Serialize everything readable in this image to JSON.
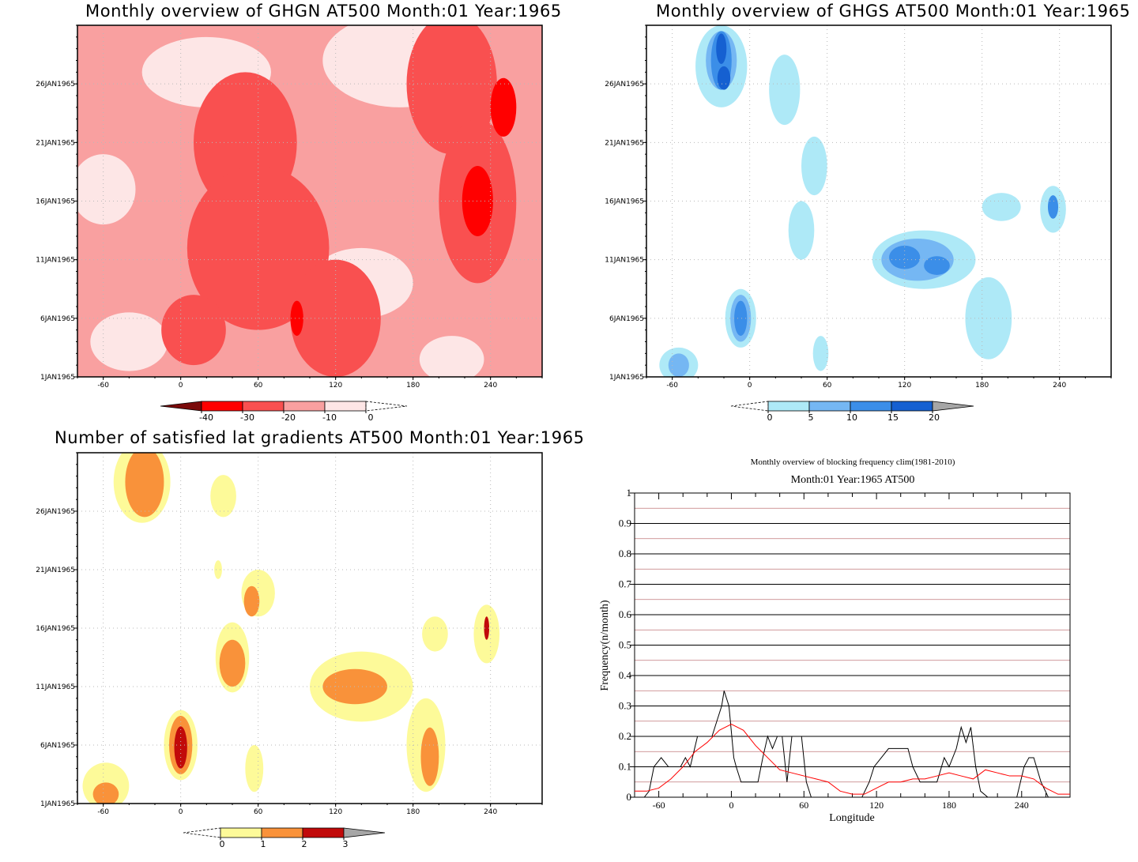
{
  "colors": {
    "red": [
      "#7a0a0a",
      "#ff0000",
      "#f95050",
      "#f9a0a0",
      "#fde6e6"
    ],
    "blue": [
      "#aee9f7",
      "#75b7f3",
      "#3b8ee8",
      "#1560d1",
      "#a6a6a6"
    ],
    "yellow": [
      "#fdfa99",
      "#f9923a",
      "#c10a0a",
      "#a6a6a6"
    ],
    "line_black": "#000000",
    "line_red": "#ff0000",
    "grid_pink": "#c0787a"
  },
  "chart_data": [
    {
      "type": "heatmap",
      "title": "Monthly overview of GHGN AT500 Month:01 Year:1965",
      "y_ticks": [
        "1JAN1965",
        "6JAN1965",
        "11JAN1965",
        "16JAN1965",
        "21JAN1965",
        "26JAN1965"
      ],
      "x_ticks": [
        "-60",
        "0",
        "60",
        "120",
        "180",
        "240"
      ],
      "xlim": [
        -80,
        280
      ],
      "ylim": [
        1,
        31
      ],
      "colorbar": {
        "labels": [
          "-40",
          "-30",
          "-20",
          "-10",
          "0"
        ],
        "ends": [
          "triangle-left",
          "dashed-right"
        ]
      },
      "blobs": [
        {
          "level": 1,
          "x": 250,
          "y": 24,
          "rx": 10,
          "ry": 2.5
        },
        {
          "level": 1,
          "x": 230,
          "y": 16,
          "rx": 12,
          "ry": 3
        },
        {
          "level": 1,
          "x": 90,
          "y": 6,
          "rx": 5,
          "ry": 1.5
        },
        {
          "level": 2,
          "x": 210,
          "y": 26,
          "rx": 35,
          "ry": 6
        },
        {
          "level": 2,
          "x": 50,
          "y": 21,
          "rx": 40,
          "ry": 6
        },
        {
          "level": 2,
          "x": 230,
          "y": 16,
          "rx": 30,
          "ry": 7
        },
        {
          "level": 2,
          "x": 60,
          "y": 12,
          "rx": 55,
          "ry": 7
        },
        {
          "level": 2,
          "x": 120,
          "y": 6,
          "rx": 35,
          "ry": 5
        },
        {
          "level": 2,
          "x": 10,
          "y": 5,
          "rx": 25,
          "ry": 3
        },
        {
          "level": 3,
          "x": 80,
          "y": 30,
          "rx": 70,
          "ry": 3
        },
        {
          "level": 3,
          "x": 0,
          "y": 23,
          "rx": 60,
          "ry": 3
        },
        {
          "level": 4,
          "x": 20,
          "y": 27,
          "rx": 50,
          "ry": 3
        },
        {
          "level": 4,
          "x": 170,
          "y": 28,
          "rx": 60,
          "ry": 4
        },
        {
          "level": 4,
          "x": -60,
          "y": 17,
          "rx": 25,
          "ry": 3
        },
        {
          "level": 4,
          "x": 140,
          "y": 9,
          "rx": 40,
          "ry": 3
        },
        {
          "level": 4,
          "x": -40,
          "y": 4,
          "rx": 30,
          "ry": 2.5
        },
        {
          "level": 4,
          "x": 210,
          "y": 2.5,
          "rx": 25,
          "ry": 2
        }
      ]
    },
    {
      "type": "heatmap",
      "title": "Monthly overview of GHGS AT500 Month:01 Year:1965",
      "y_ticks": [
        "1JAN1965",
        "6JAN1965",
        "11JAN1965",
        "16JAN1965",
        "21JAN1965",
        "26JAN1965"
      ],
      "x_ticks": [
        "-60",
        "0",
        "60",
        "120",
        "180",
        "240"
      ],
      "xlim": [
        -80,
        280
      ],
      "ylim": [
        1,
        31
      ],
      "colorbar": {
        "labels": [
          "0",
          "5",
          "10",
          "15",
          "20"
        ],
        "ends": [
          "dashed-left",
          "triangle-right"
        ]
      },
      "blobs": [
        {
          "level": 0,
          "x": -22,
          "y": 27.5,
          "rx": 20,
          "ry": 3.5
        },
        {
          "level": 0,
          "x": 27,
          "y": 25.5,
          "rx": 12,
          "ry": 3
        },
        {
          "level": 0,
          "x": 50,
          "y": 19,
          "rx": 10,
          "ry": 2.5
        },
        {
          "level": 0,
          "x": 40,
          "y": 13.5,
          "rx": 10,
          "ry": 2.5
        },
        {
          "level": 0,
          "x": 195,
          "y": 15.5,
          "rx": 15,
          "ry": 1.2
        },
        {
          "level": 0,
          "x": 235,
          "y": 15.3,
          "rx": 10,
          "ry": 2
        },
        {
          "level": 0,
          "x": 135,
          "y": 11,
          "rx": 40,
          "ry": 2.5
        },
        {
          "level": 0,
          "x": -7,
          "y": 6,
          "rx": 12,
          "ry": 2.5
        },
        {
          "level": 0,
          "x": 185,
          "y": 6,
          "rx": 18,
          "ry": 3.5
        },
        {
          "level": 0,
          "x": 55,
          "y": 3,
          "rx": 6,
          "ry": 1.5
        },
        {
          "level": 0,
          "x": -55,
          "y": 2,
          "rx": 15,
          "ry": 1.5
        },
        {
          "level": 1,
          "x": -22,
          "y": 28,
          "rx": 12,
          "ry": 2.5
        },
        {
          "level": 1,
          "x": 130,
          "y": 11,
          "rx": 28,
          "ry": 1.8
        },
        {
          "level": 1,
          "x": -7,
          "y": 6,
          "rx": 8,
          "ry": 2
        },
        {
          "level": 1,
          "x": -55,
          "y": 2,
          "rx": 8,
          "ry": 1
        },
        {
          "level": 2,
          "x": -22,
          "y": 28,
          "rx": 8,
          "ry": 2.5
        },
        {
          "level": 2,
          "x": 120,
          "y": 11.2,
          "rx": 12,
          "ry": 1
        },
        {
          "level": 2,
          "x": 145,
          "y": 10.5,
          "rx": 10,
          "ry": 0.8
        },
        {
          "level": 2,
          "x": -7,
          "y": 6,
          "rx": 5,
          "ry": 1.5
        },
        {
          "level": 2,
          "x": 235,
          "y": 15.5,
          "rx": 4,
          "ry": 1
        },
        {
          "level": 3,
          "x": -22,
          "y": 29,
          "rx": 4,
          "ry": 1.3
        },
        {
          "level": 3,
          "x": -20,
          "y": 26.5,
          "rx": 5,
          "ry": 1
        }
      ]
    },
    {
      "type": "heatmap",
      "title": "Number of satisfied lat gradients AT500 Month:01 Year:1965",
      "y_ticks": [
        "1JAN1965",
        "6JAN1965",
        "11JAN1965",
        "16JAN1965",
        "21JAN1965",
        "26JAN1965"
      ],
      "x_ticks": [
        "-60",
        "0",
        "60",
        "120",
        "180",
        "240"
      ],
      "xlim": [
        -80,
        280
      ],
      "ylim": [
        1,
        31
      ],
      "colorbar": {
        "labels": [
          "0",
          "1",
          "2",
          "3"
        ],
        "ends": [
          "dashed-left",
          "triangle-right"
        ]
      },
      "blobs": [
        {
          "level": 0,
          "x": -30,
          "y": 28.5,
          "rx": 22,
          "ry": 3.5
        },
        {
          "level": 0,
          "x": 33,
          "y": 27.3,
          "rx": 10,
          "ry": 1.8
        },
        {
          "level": 0,
          "x": 29,
          "y": 21,
          "rx": 3,
          "ry": 0.8
        },
        {
          "level": 0,
          "x": 60,
          "y": 19,
          "rx": 13,
          "ry": 2
        },
        {
          "level": 0,
          "x": 40,
          "y": 13.5,
          "rx": 13,
          "ry": 3
        },
        {
          "level": 0,
          "x": 197,
          "y": 15.5,
          "rx": 10,
          "ry": 1.5
        },
        {
          "level": 0,
          "x": 237,
          "y": 15.5,
          "rx": 10,
          "ry": 2.5
        },
        {
          "level": 0,
          "x": 140,
          "y": 11,
          "rx": 40,
          "ry": 3
        },
        {
          "level": 0,
          "x": 0,
          "y": 6,
          "rx": 13,
          "ry": 3
        },
        {
          "level": 0,
          "x": 190,
          "y": 6,
          "rx": 15,
          "ry": 4
        },
        {
          "level": 0,
          "x": 57,
          "y": 4,
          "rx": 7,
          "ry": 2
        },
        {
          "level": 0,
          "x": -58,
          "y": 2.5,
          "rx": 18,
          "ry": 2
        },
        {
          "level": 1,
          "x": -28,
          "y": 28.5,
          "rx": 15,
          "ry": 3
        },
        {
          "level": 1,
          "x": 55,
          "y": 18.3,
          "rx": 6,
          "ry": 1.3
        },
        {
          "level": 1,
          "x": 40,
          "y": 13,
          "rx": 10,
          "ry": 2
        },
        {
          "level": 1,
          "x": 135,
          "y": 11,
          "rx": 25,
          "ry": 1.5
        },
        {
          "level": 1,
          "x": 0,
          "y": 6,
          "rx": 9,
          "ry": 2.5
        },
        {
          "level": 1,
          "x": 193,
          "y": 5,
          "rx": 7,
          "ry": 2.5
        },
        {
          "level": 1,
          "x": -58,
          "y": 1.8,
          "rx": 10,
          "ry": 1
        },
        {
          "level": 2,
          "x": 0,
          "y": 5.8,
          "rx": 5,
          "ry": 1.8
        },
        {
          "level": 2,
          "x": 237,
          "y": 16,
          "rx": 2,
          "ry": 1
        }
      ]
    },
    {
      "type": "line",
      "title": "Monthly overview of blocking frequency clim(1981-2010)",
      "subtitle": "Month:01 Year:1965  AT500",
      "xlabel": "Longitude",
      "ylabel": "Frequency(n/month)",
      "xlim": [
        -80,
        280
      ],
      "ylim": [
        0,
        1
      ],
      "x_ticks": [
        "-60",
        "0",
        "60",
        "120",
        "180",
        "240"
      ],
      "y_ticks": [
        "0",
        "0.1",
        "0.2",
        "0.3",
        "0.4",
        "0.5",
        "0.6",
        "0.7",
        "0.8",
        "0.9",
        "1"
      ],
      "series": [
        {
          "color": "#000000",
          "x": [
            -80,
            -72,
            -68,
            -64,
            -58,
            -52,
            -48,
            -42,
            -38,
            -34,
            -28,
            -22,
            -16,
            -12,
            -8,
            -6,
            -2,
            2,
            4,
            8,
            12,
            16,
            22,
            26,
            30,
            34,
            38,
            42,
            46,
            50,
            54,
            58,
            62,
            66,
            70,
            74,
            80,
            90,
            100,
            108,
            114,
            118,
            124,
            130,
            136,
            142,
            146,
            150,
            156,
            160,
            166,
            170,
            176,
            180,
            186,
            190,
            194,
            198,
            202,
            206,
            212,
            218,
            226,
            230,
            236,
            242,
            246,
            250,
            256,
            262,
            268,
            272,
            280
          ],
          "y": [
            0,
            0,
            0.02,
            0.1,
            0.13,
            0.1,
            0.1,
            0.1,
            0.13,
            0.1,
            0.2,
            0.2,
            0.2,
            0.25,
            0.3,
            0.35,
            0.3,
            0.13,
            0.1,
            0.05,
            0.05,
            0.05,
            0.05,
            0.13,
            0.2,
            0.16,
            0.2,
            0.2,
            0.05,
            0.2,
            0.2,
            0.2,
            0.05,
            0,
            0,
            0,
            0,
            0,
            0,
            0,
            0.05,
            0.1,
            0.13,
            0.16,
            0.16,
            0.16,
            0.16,
            0.1,
            0.05,
            0.05,
            0.05,
            0.05,
            0.13,
            0.1,
            0.16,
            0.23,
            0.18,
            0.23,
            0.1,
            0.02,
            0,
            0,
            0,
            0,
            0,
            0.1,
            0.13,
            0.13,
            0.05,
            0,
            0,
            0,
            0
          ]
        },
        {
          "color": "#ff0000",
          "x": [
            -80,
            -70,
            -60,
            -50,
            -40,
            -30,
            -20,
            -10,
            0,
            10,
            20,
            30,
            40,
            50,
            60,
            70,
            80,
            90,
            100,
            110,
            120,
            130,
            140,
            150,
            160,
            170,
            180,
            190,
            200,
            210,
            220,
            230,
            240,
            250,
            260,
            270,
            280
          ],
          "y": [
            0.02,
            0.02,
            0.03,
            0.06,
            0.1,
            0.15,
            0.18,
            0.22,
            0.24,
            0.22,
            0.17,
            0.13,
            0.09,
            0.08,
            0.07,
            0.06,
            0.05,
            0.02,
            0.01,
            0.01,
            0.03,
            0.05,
            0.05,
            0.06,
            0.06,
            0.07,
            0.08,
            0.07,
            0.06,
            0.09,
            0.08,
            0.07,
            0.07,
            0.06,
            0.03,
            0.01,
            0.01
          ]
        }
      ]
    }
  ]
}
